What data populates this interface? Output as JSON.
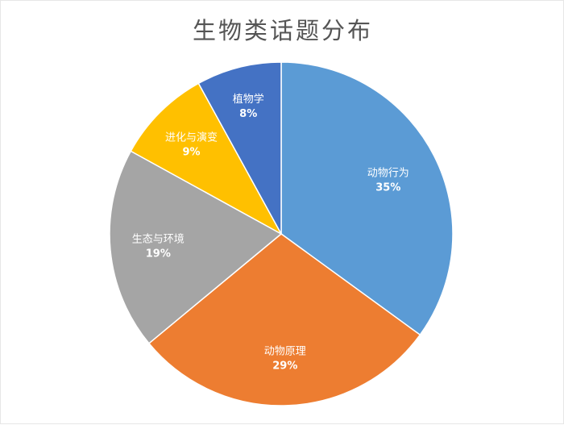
{
  "chart_data": {
    "type": "pie",
    "title": "生物类话题分布",
    "start_angle_deg": 0,
    "direction": "clockwise",
    "slices": [
      {
        "label": "动物行为",
        "value": 35,
        "value_label": "35%",
        "color": "#5b9bd5"
      },
      {
        "label": "动物原理",
        "value": 29,
        "value_label": "29%",
        "color": "#ed7d31"
      },
      {
        "label": "生态与环境",
        "value": 19,
        "value_label": "19%",
        "color": "#a5a5a5"
      },
      {
        "label": "进化与演变",
        "value": 9,
        "value_label": "9%",
        "color": "#ffc000"
      },
      {
        "label": "植物学",
        "value": 8,
        "value_label": "8%",
        "color": "#4472c4"
      }
    ]
  }
}
